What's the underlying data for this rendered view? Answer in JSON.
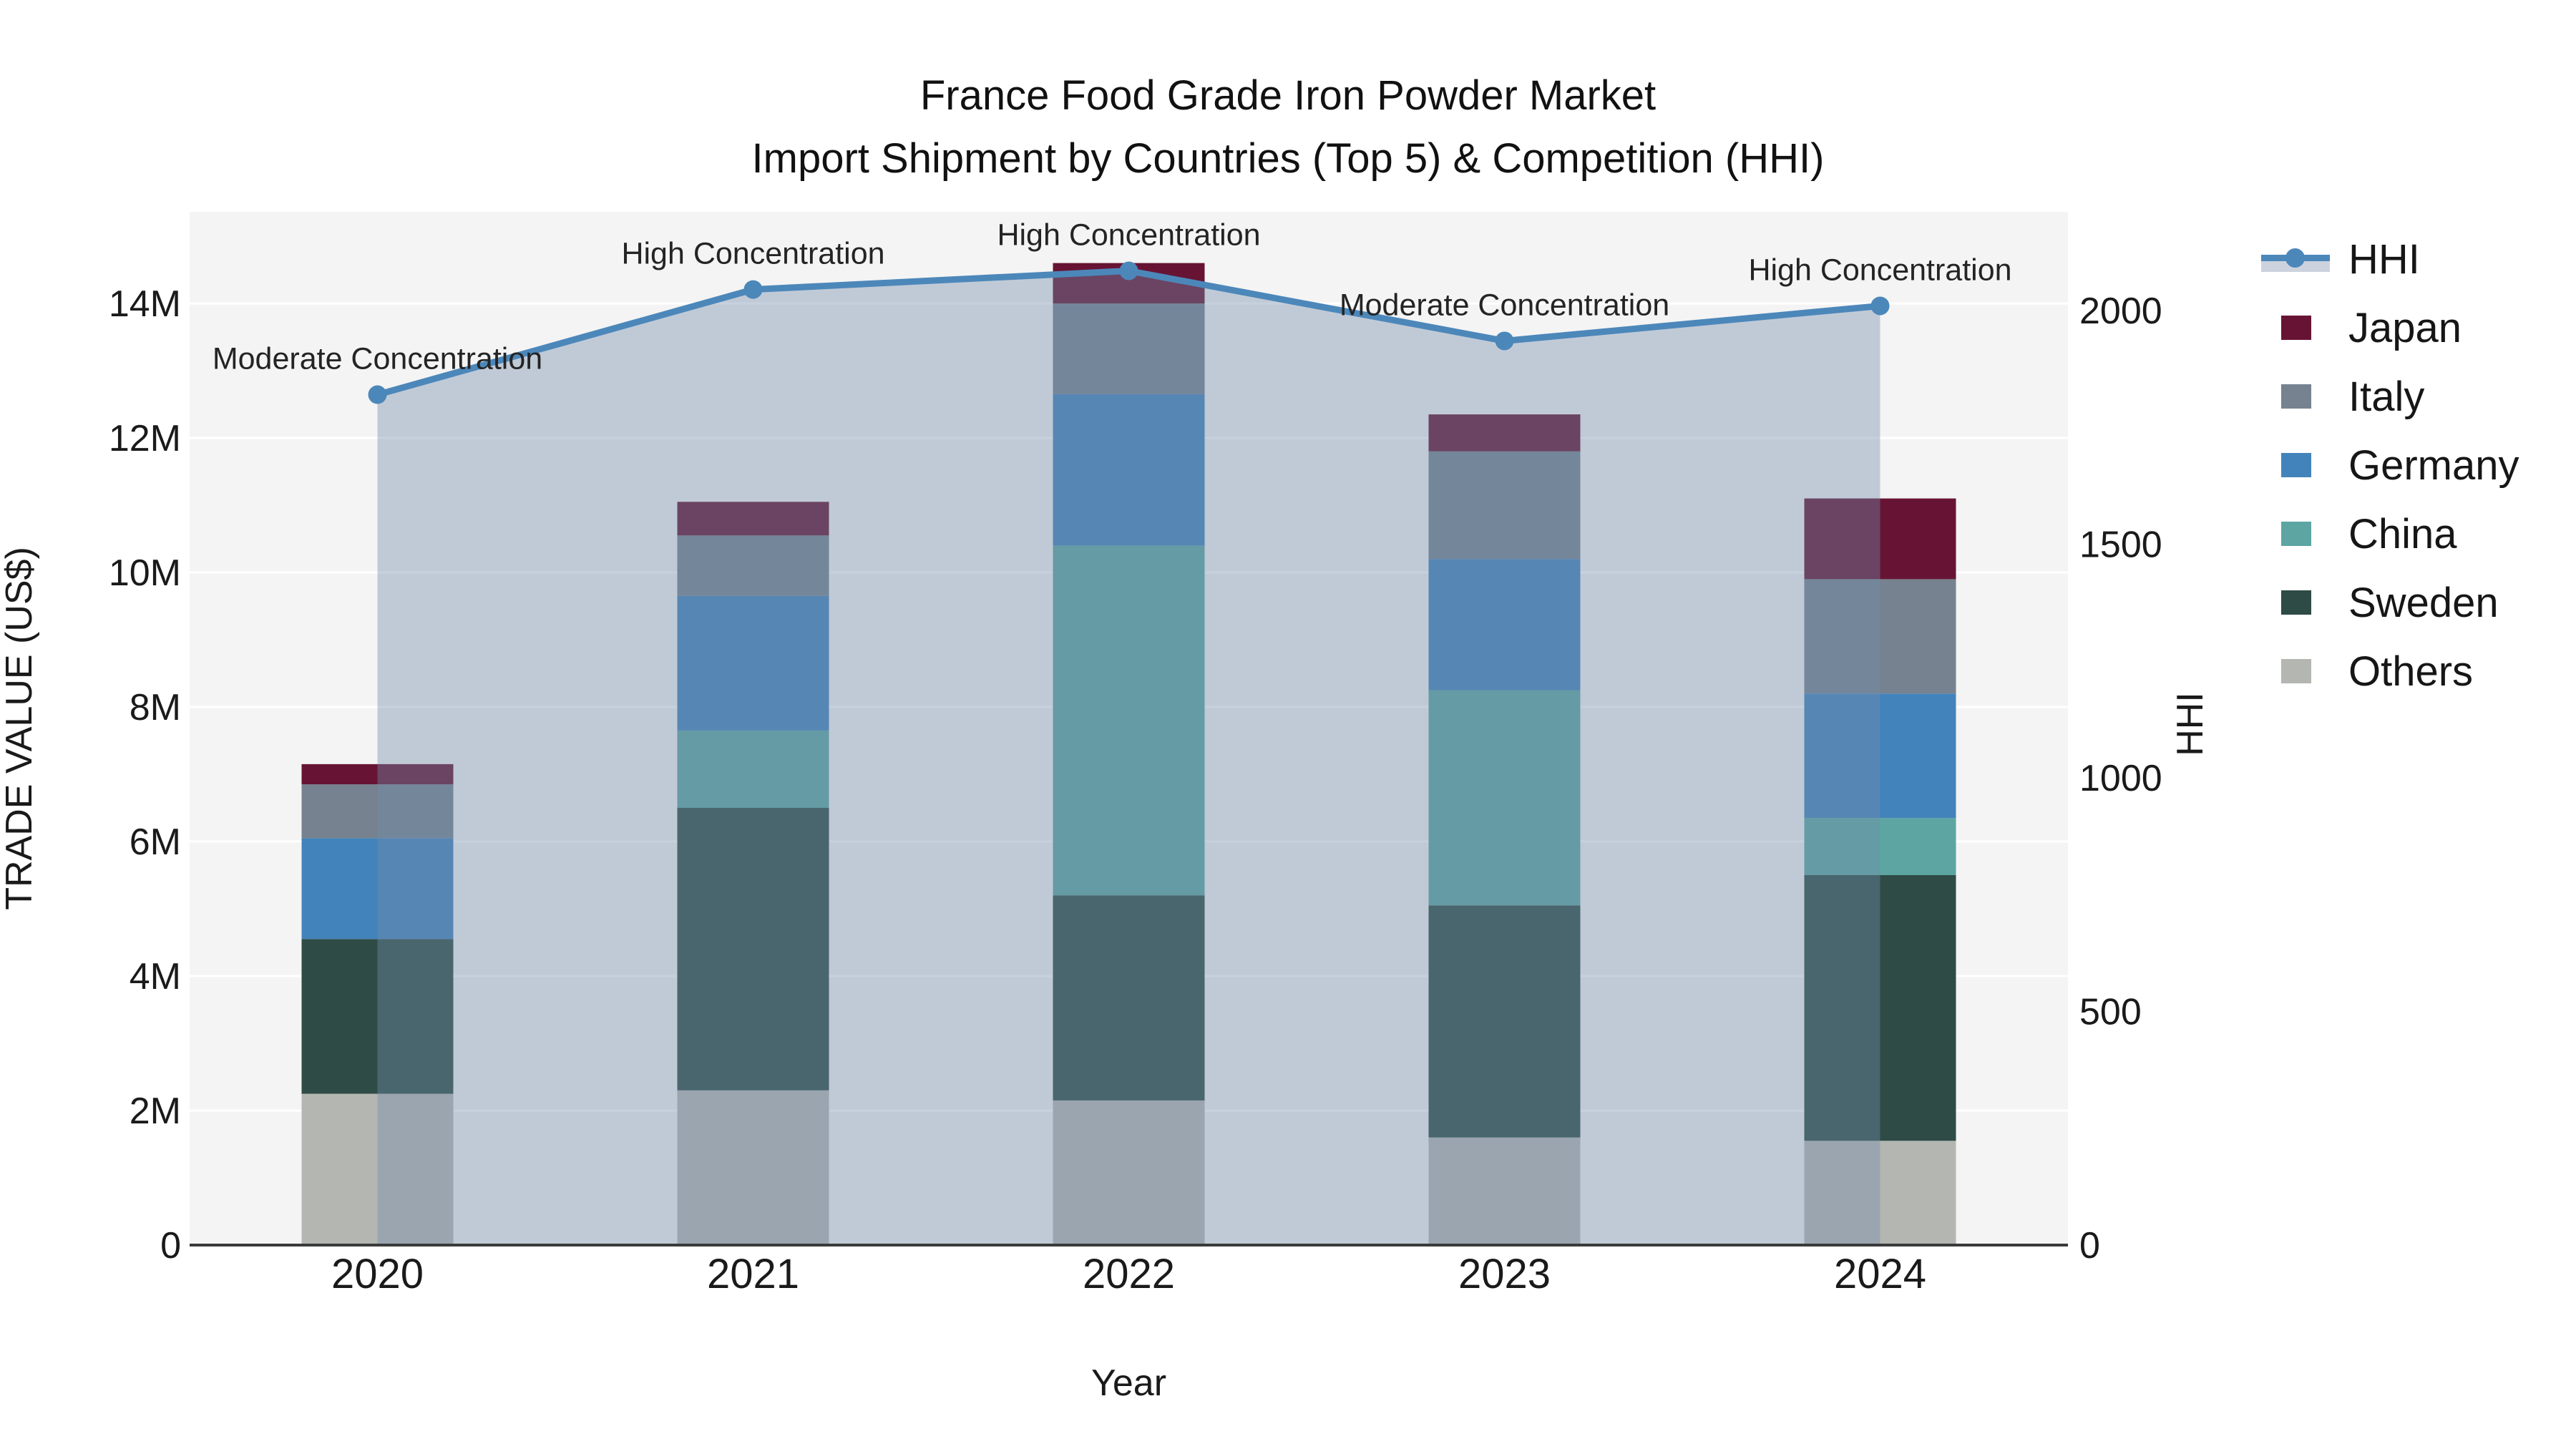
{
  "title": {
    "line1": "France Food Grade Iron Powder Market",
    "line2": "Import Shipment by Countries (Top 5) & Competition (HHI)"
  },
  "colors": {
    "plot_bg": "#f4f4f4",
    "grid": "#ffffff",
    "axis_line": "#3a3a3a",
    "text": "#1a1a1a",
    "hhi_line": "#4c87ba",
    "hhi_fill": "rgba(115,140,170,0.40)",
    "japan": "#671434",
    "italy": "#76828f",
    "germany": "#4383bb",
    "china": "#5ca5a2",
    "sweden": "#2e4b46",
    "others": "#b4b6b2"
  },
  "legend": {
    "items": [
      {
        "label": "HHI",
        "type": "line",
        "color": "#4c87ba"
      },
      {
        "label": "Japan",
        "type": "box",
        "color": "#671434"
      },
      {
        "label": "Italy",
        "type": "box",
        "color": "#76828f"
      },
      {
        "label": "Germany",
        "type": "box",
        "color": "#4383bb"
      },
      {
        "label": "China",
        "type": "box",
        "color": "#5ca5a2"
      },
      {
        "label": "Sweden",
        "type": "box",
        "color": "#2e4b46"
      },
      {
        "label": "Others",
        "type": "box",
        "color": "#b4b6b2"
      }
    ]
  },
  "chart_data": {
    "type": "bar+line",
    "title": "France Food Grade Iron Powder Market — Import Shipment by Countries (Top 5) & Competition (HHI)",
    "xlabel": "Year",
    "ylabel_left": "TRADE VALUE (US$)",
    "ylabel_right": "HHI",
    "categories": [
      "2020",
      "2021",
      "2022",
      "2023",
      "2024"
    ],
    "unit": "M US$",
    "stack_order_bottom_to_top": [
      "Others",
      "Sweden",
      "China",
      "Germany",
      "Italy",
      "Japan"
    ],
    "series": [
      {
        "name": "Others",
        "color_key": "others",
        "values": [
          2.25,
          2.3,
          2.15,
          1.6,
          1.55
        ]
      },
      {
        "name": "Sweden",
        "color_key": "sweden",
        "values": [
          2.3,
          4.2,
          3.05,
          3.45,
          3.95
        ]
      },
      {
        "name": "China",
        "color_key": "china",
        "values": [
          0.0,
          1.15,
          5.2,
          3.2,
          0.85
        ]
      },
      {
        "name": "Germany",
        "color_key": "germany",
        "values": [
          1.5,
          2.0,
          2.25,
          1.95,
          1.85
        ]
      },
      {
        "name": "Italy",
        "color_key": "italy",
        "values": [
          0.8,
          0.9,
          1.35,
          1.6,
          1.7
        ]
      },
      {
        "name": "Japan",
        "color_key": "japan",
        "values": [
          0.3,
          0.5,
          0.6,
          0.55,
          1.2
        ]
      }
    ],
    "bar_totals": [
      7.15,
      11.05,
      14.6,
      12.35,
      11.1
    ],
    "line_series": {
      "name": "HHI",
      "axis": "right",
      "values": [
        1820,
        2045,
        2085,
        1935,
        2010
      ],
      "fill_to_zero": true
    },
    "annotations": [
      {
        "x_category": "2020",
        "label": "Moderate Concentration"
      },
      {
        "x_category": "2021",
        "label": "High Concentration"
      },
      {
        "x_category": "2022",
        "label": "High Concentration"
      },
      {
        "x_category": "2023",
        "label": "Moderate Concentration"
      },
      {
        "x_category": "2024",
        "label": "High Concentration"
      }
    ],
    "axes": {
      "y_left": {
        "title": "TRADE VALUE (US$)",
        "tick_labels": [
          "0",
          "2M",
          "4M",
          "6M",
          "8M",
          "10M",
          "12M",
          "14M"
        ],
        "tick_values": [
          0,
          2,
          4,
          6,
          8,
          10,
          12,
          14
        ],
        "range": [
          0,
          15.36
        ],
        "grid": true
      },
      "y_right": {
        "title": "HHI",
        "tick_labels": [
          "0",
          "500",
          "1000",
          "1500",
          "2000"
        ],
        "tick_values": [
          0,
          500,
          1000,
          1500,
          2000
        ],
        "range": [
          0,
          2210
        ],
        "grid": false
      },
      "x": {
        "title": "Year",
        "tick_labels": [
          "2020",
          "2021",
          "2022",
          "2023",
          "2024"
        ]
      }
    },
    "legend_position": "right"
  }
}
